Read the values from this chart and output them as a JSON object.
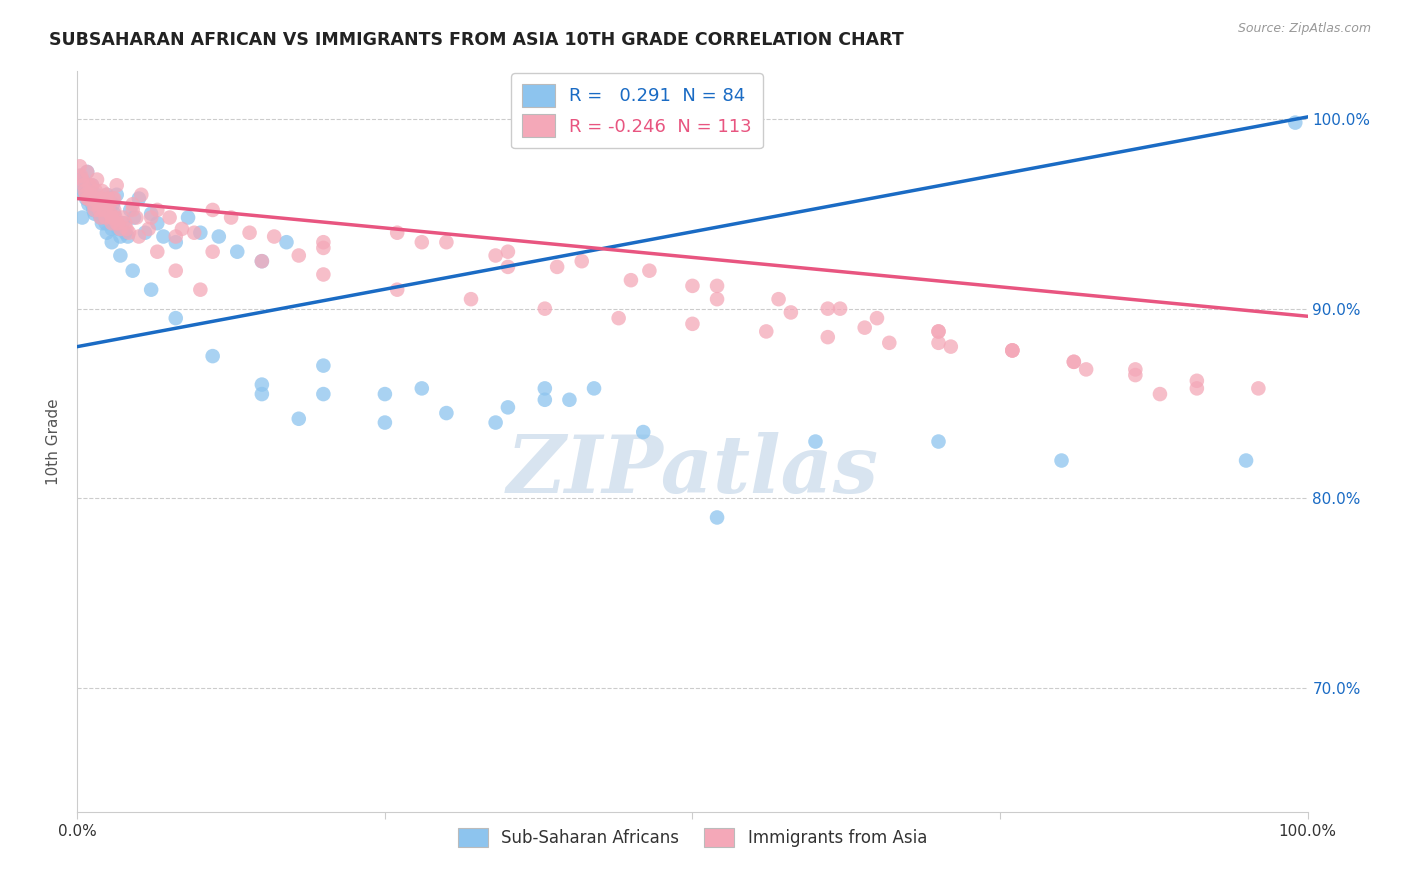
{
  "title": "SUBSAHARAN AFRICAN VS IMMIGRANTS FROM ASIA 10TH GRADE CORRELATION CHART",
  "source": "Source: ZipAtlas.com",
  "ylabel": "10th Grade",
  "y_tick_labels": [
    "70.0%",
    "80.0%",
    "90.0%",
    "100.0%"
  ],
  "y_tick_values": [
    0.7,
    0.8,
    0.9,
    1.0
  ],
  "x_tick_positions": [
    0.0,
    0.25,
    0.5,
    0.75,
    1.0
  ],
  "xlim": [
    0.0,
    1.0
  ],
  "ylim": [
    0.635,
    1.025
  ],
  "legend_blue_label": "R =   0.291  N = 84",
  "legend_pink_label": "R = -0.246  N = 113",
  "legend_blue_label2": "Sub-Saharan Africans",
  "legend_pink_label2": "Immigrants from Asia",
  "blue_color": "#8DC4EE",
  "pink_color": "#F4A8B8",
  "blue_line_color": "#1A6BC4",
  "pink_line_color": "#E85580",
  "watermark_color": "#D8E4F0",
  "blue_line_x": [
    0.0,
    1.0
  ],
  "blue_line_y": [
    0.88,
    1.001
  ],
  "pink_line_x": [
    0.0,
    1.0
  ],
  "pink_line_y": [
    0.958,
    0.896
  ],
  "blue_x": [
    0.002,
    0.003,
    0.004,
    0.005,
    0.006,
    0.007,
    0.008,
    0.009,
    0.01,
    0.011,
    0.012,
    0.013,
    0.014,
    0.015,
    0.016,
    0.017,
    0.018,
    0.019,
    0.02,
    0.021,
    0.022,
    0.023,
    0.024,
    0.025,
    0.026,
    0.027,
    0.028,
    0.029,
    0.03,
    0.031,
    0.032,
    0.033,
    0.035,
    0.037,
    0.039,
    0.041,
    0.043,
    0.046,
    0.05,
    0.055,
    0.06,
    0.065,
    0.07,
    0.08,
    0.09,
    0.1,
    0.115,
    0.13,
    0.15,
    0.17,
    0.004,
    0.008,
    0.012,
    0.016,
    0.02,
    0.024,
    0.028,
    0.035,
    0.045,
    0.06,
    0.08,
    0.11,
    0.15,
    0.2,
    0.25,
    0.3,
    0.2,
    0.28,
    0.34,
    0.4,
    0.46,
    0.38,
    0.15,
    0.18,
    0.25,
    0.35,
    0.42,
    0.38,
    0.52,
    0.6,
    0.7,
    0.8,
    0.95,
    0.99
  ],
  "blue_y": [
    0.97,
    0.965,
    0.968,
    0.962,
    0.96,
    0.958,
    0.972,
    0.955,
    0.963,
    0.958,
    0.955,
    0.952,
    0.95,
    0.96,
    0.955,
    0.953,
    0.95,
    0.948,
    0.955,
    0.952,
    0.948,
    0.945,
    0.96,
    0.958,
    0.953,
    0.948,
    0.942,
    0.955,
    0.95,
    0.945,
    0.96,
    0.942,
    0.938,
    0.945,
    0.94,
    0.938,
    0.952,
    0.948,
    0.958,
    0.94,
    0.95,
    0.945,
    0.938,
    0.935,
    0.948,
    0.94,
    0.938,
    0.93,
    0.925,
    0.935,
    0.948,
    0.962,
    0.965,
    0.958,
    0.945,
    0.94,
    0.935,
    0.928,
    0.92,
    0.91,
    0.895,
    0.875,
    0.86,
    0.855,
    0.84,
    0.845,
    0.87,
    0.858,
    0.84,
    0.852,
    0.835,
    0.858,
    0.855,
    0.842,
    0.855,
    0.848,
    0.858,
    0.852,
    0.79,
    0.83,
    0.83,
    0.82,
    0.82,
    0.998
  ],
  "pink_x": [
    0.002,
    0.003,
    0.004,
    0.005,
    0.006,
    0.007,
    0.008,
    0.009,
    0.01,
    0.011,
    0.012,
    0.013,
    0.014,
    0.015,
    0.016,
    0.017,
    0.018,
    0.019,
    0.02,
    0.021,
    0.022,
    0.023,
    0.024,
    0.025,
    0.026,
    0.027,
    0.028,
    0.029,
    0.03,
    0.031,
    0.032,
    0.033,
    0.035,
    0.037,
    0.039,
    0.042,
    0.045,
    0.048,
    0.052,
    0.058,
    0.065,
    0.075,
    0.085,
    0.095,
    0.11,
    0.125,
    0.14,
    0.16,
    0.18,
    0.2,
    0.008,
    0.012,
    0.016,
    0.02,
    0.024,
    0.028,
    0.032,
    0.04,
    0.05,
    0.065,
    0.08,
    0.1,
    0.03,
    0.045,
    0.06,
    0.08,
    0.11,
    0.15,
    0.2,
    0.26,
    0.32,
    0.38,
    0.44,
    0.5,
    0.56,
    0.61,
    0.66,
    0.71,
    0.76,
    0.81,
    0.86,
    0.91,
    0.96,
    0.26,
    0.3,
    0.35,
    0.41,
    0.465,
    0.52,
    0.57,
    0.61,
    0.65,
    0.7,
    0.28,
    0.34,
    0.39,
    0.45,
    0.52,
    0.58,
    0.64,
    0.7,
    0.76,
    0.81,
    0.86,
    0.91,
    0.2,
    0.35,
    0.5,
    0.62,
    0.7,
    0.76,
    0.82,
    0.88
  ],
  "pink_y": [
    0.975,
    0.97,
    0.968,
    0.965,
    0.962,
    0.96,
    0.972,
    0.958,
    0.965,
    0.96,
    0.958,
    0.955,
    0.952,
    0.962,
    0.958,
    0.955,
    0.952,
    0.948,
    0.958,
    0.955,
    0.952,
    0.948,
    0.96,
    0.958,
    0.955,
    0.95,
    0.945,
    0.958,
    0.952,
    0.948,
    0.965,
    0.945,
    0.942,
    0.948,
    0.945,
    0.94,
    0.952,
    0.948,
    0.96,
    0.942,
    0.952,
    0.948,
    0.942,
    0.94,
    0.952,
    0.948,
    0.94,
    0.938,
    0.928,
    0.935,
    0.958,
    0.965,
    0.968,
    0.962,
    0.955,
    0.948,
    0.945,
    0.942,
    0.938,
    0.93,
    0.92,
    0.91,
    0.958,
    0.955,
    0.948,
    0.938,
    0.93,
    0.925,
    0.918,
    0.91,
    0.905,
    0.9,
    0.895,
    0.892,
    0.888,
    0.885,
    0.882,
    0.88,
    0.878,
    0.872,
    0.868,
    0.862,
    0.858,
    0.94,
    0.935,
    0.93,
    0.925,
    0.92,
    0.912,
    0.905,
    0.9,
    0.895,
    0.888,
    0.935,
    0.928,
    0.922,
    0.915,
    0.905,
    0.898,
    0.89,
    0.882,
    0.878,
    0.872,
    0.865,
    0.858,
    0.932,
    0.922,
    0.912,
    0.9,
    0.888,
    0.878,
    0.868,
    0.855
  ]
}
